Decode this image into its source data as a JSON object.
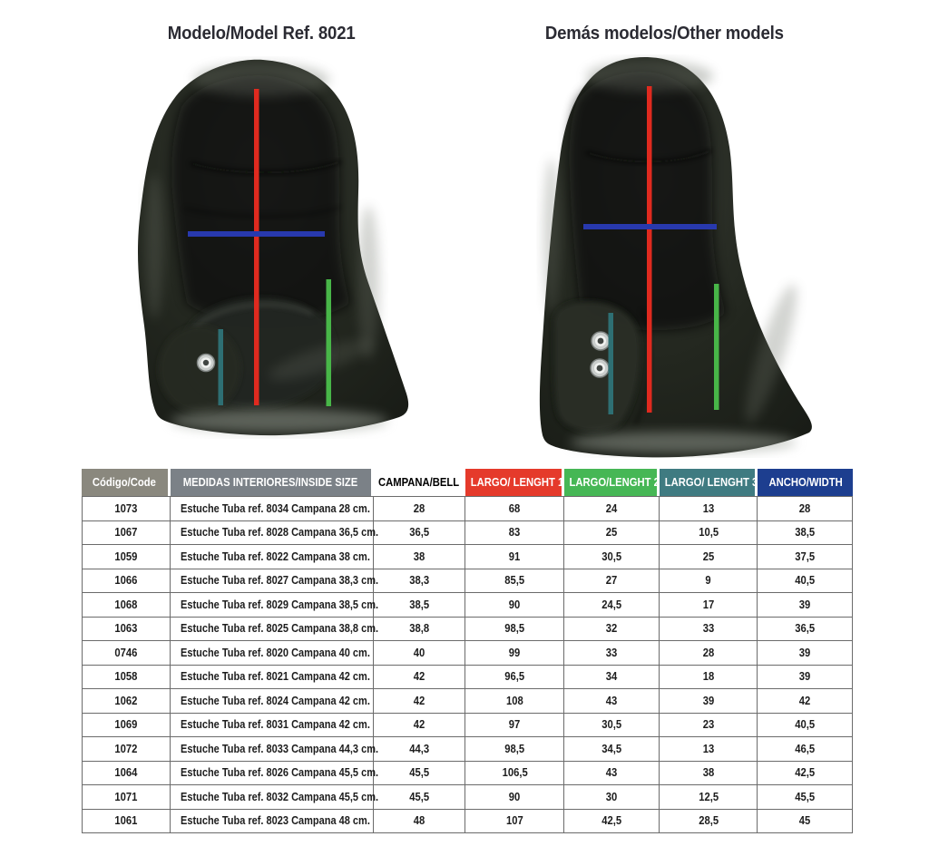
{
  "figures": {
    "left": {
      "title": "Modelo/Model Ref. 8021"
    },
    "right": {
      "title": "Demás modelos/Other models"
    }
  },
  "measures": {
    "largo1_color": "#e02a1f",
    "largo2_color": "#48b648",
    "largo3_color": "#2e6f73",
    "ancho_color": "#2839ae"
  },
  "table": {
    "columns": [
      {
        "key": "code",
        "label": "Código/Code",
        "bg": "#8a887e",
        "fg": "#ffffff",
        "width": 11.5
      },
      {
        "key": "desc",
        "label": "MEDIDAS INTERIORES/INSIDE SIZE",
        "bg": "#7b8187",
        "fg": "#ffffff",
        "width": 26.4
      },
      {
        "key": "bell",
        "label": "CAMPANA/BELL",
        "bg": "#ffffff",
        "fg": "#000000",
        "width": 11.9
      },
      {
        "key": "l1",
        "label": "LARGO/ LENGHT 1",
        "bg": "#e53a2b",
        "fg": "#ffffff",
        "width": 12.8
      },
      {
        "key": "l2",
        "label": "LARGO/LENGHT 2",
        "bg": "#46b755",
        "fg": "#ffffff",
        "width": 12.4
      },
      {
        "key": "l3",
        "label": "LARGO/ LENGHT 3",
        "bg": "#3f7b81",
        "fg": "#ffffff",
        "width": 12.7
      },
      {
        "key": "width",
        "label": "ANCHO/WIDTH",
        "bg": "#1d3e8f",
        "fg": "#ffffff",
        "width": 12.3
      }
    ],
    "rows": [
      [
        "1073",
        "Estuche Tuba ref. 8034 Campana 28 cm.",
        "28",
        "68",
        "24",
        "13",
        "28"
      ],
      [
        "1067",
        "Estuche Tuba ref. 8028 Campana 36,5 cm.",
        "36,5",
        "83",
        "25",
        "10,5",
        "38,5"
      ],
      [
        "1059",
        "Estuche Tuba ref. 8022 Campana 38 cm.",
        "38",
        "91",
        "30,5",
        "25",
        "37,5"
      ],
      [
        "1066",
        "Estuche Tuba ref. 8027 Campana 38,3 cm.",
        "38,3",
        "85,5",
        "27",
        "9",
        "40,5"
      ],
      [
        "1068",
        "Estuche Tuba ref. 8029 Campana 38,5 cm.",
        "38,5",
        "90",
        "24,5",
        "17",
        "39"
      ],
      [
        "1063",
        "Estuche Tuba ref. 8025 Campana 38,8 cm.",
        "38,8",
        "98,5",
        "32",
        "33",
        "36,5"
      ],
      [
        "0746",
        "Estuche Tuba ref. 8020 Campana 40 cm.",
        "40",
        "99",
        "33",
        "28",
        "39"
      ],
      [
        "1058",
        "Estuche Tuba ref. 8021 Campana 42 cm.",
        "42",
        "96,5",
        "34",
        "18",
        "39"
      ],
      [
        "1062",
        "Estuche Tuba ref. 8024 Campana 42 cm.",
        "42",
        "108",
        "43",
        "39",
        "42"
      ],
      [
        "1069",
        "Estuche Tuba ref. 8031 Campana 42 cm.",
        "42",
        "97",
        "30,5",
        "23",
        "40,5"
      ],
      [
        "1072",
        "Estuche Tuba ref. 8033 Campana 44,3 cm.",
        "44,3",
        "98,5",
        "34,5",
        "13",
        "46,5"
      ],
      [
        "1064",
        "Estuche Tuba ref. 8026 Campana 45,5 cm.",
        "45,5",
        "106,5",
        "43",
        "38",
        "42,5"
      ],
      [
        "1071",
        "Estuche Tuba ref. 8032 Campana 45,5 cm.",
        "45,5",
        "90",
        "30",
        "12,5",
        "45,5"
      ],
      [
        "1061",
        "Estuche Tuba ref. 8023 Campana 48 cm.",
        "48",
        "107",
        "42,5",
        "28,5",
        "45"
      ]
    ]
  }
}
